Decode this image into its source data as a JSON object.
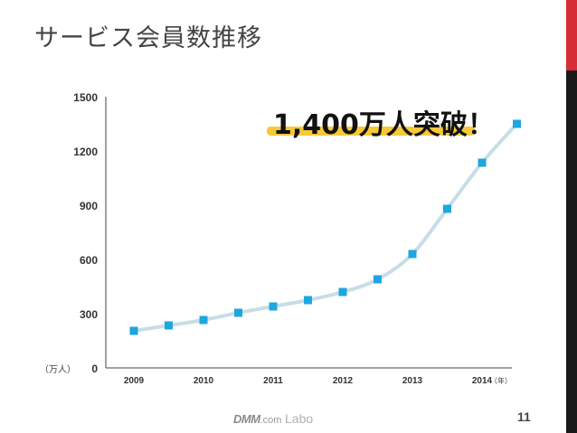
{
  "slide": {
    "title": "サービス会員数推移",
    "page_number": "11"
  },
  "footer": {
    "brand": "DMM",
    "dotcom": ".com",
    "labo": "Labo"
  },
  "colors": {
    "marker": "#1ea6df",
    "line": "#c8dde6",
    "highlight": "#f6c83a",
    "axis": "#444444",
    "accent_red": "#d62e37"
  },
  "chart_data": {
    "type": "line",
    "y_unit_label": "（万人）",
    "x_unit_label": "（年）",
    "ylim": [
      0,
      1500
    ],
    "yticks": [
      0,
      300,
      600,
      900,
      1200,
      1500
    ],
    "ytick_labels": [
      "0",
      "300",
      "600",
      "900",
      "1200",
      "1500"
    ],
    "xtick_labels": [
      "2009",
      "2010",
      "2011",
      "2012",
      "2013",
      "2014"
    ],
    "xlim": [
      2009,
      2014.8
    ],
    "grid": false,
    "annotation": "1,400万人突破！",
    "series": [
      {
        "x": [
          2009,
          2009.5,
          2010,
          2010.5,
          2011,
          2011.5,
          2012,
          2012.5,
          2013,
          2013.5,
          2014,
          2014.5
        ],
        "values": [
          205,
          235,
          265,
          305,
          340,
          375,
          420,
          490,
          630,
          880,
          1135,
          1350
        ]
      }
    ]
  }
}
